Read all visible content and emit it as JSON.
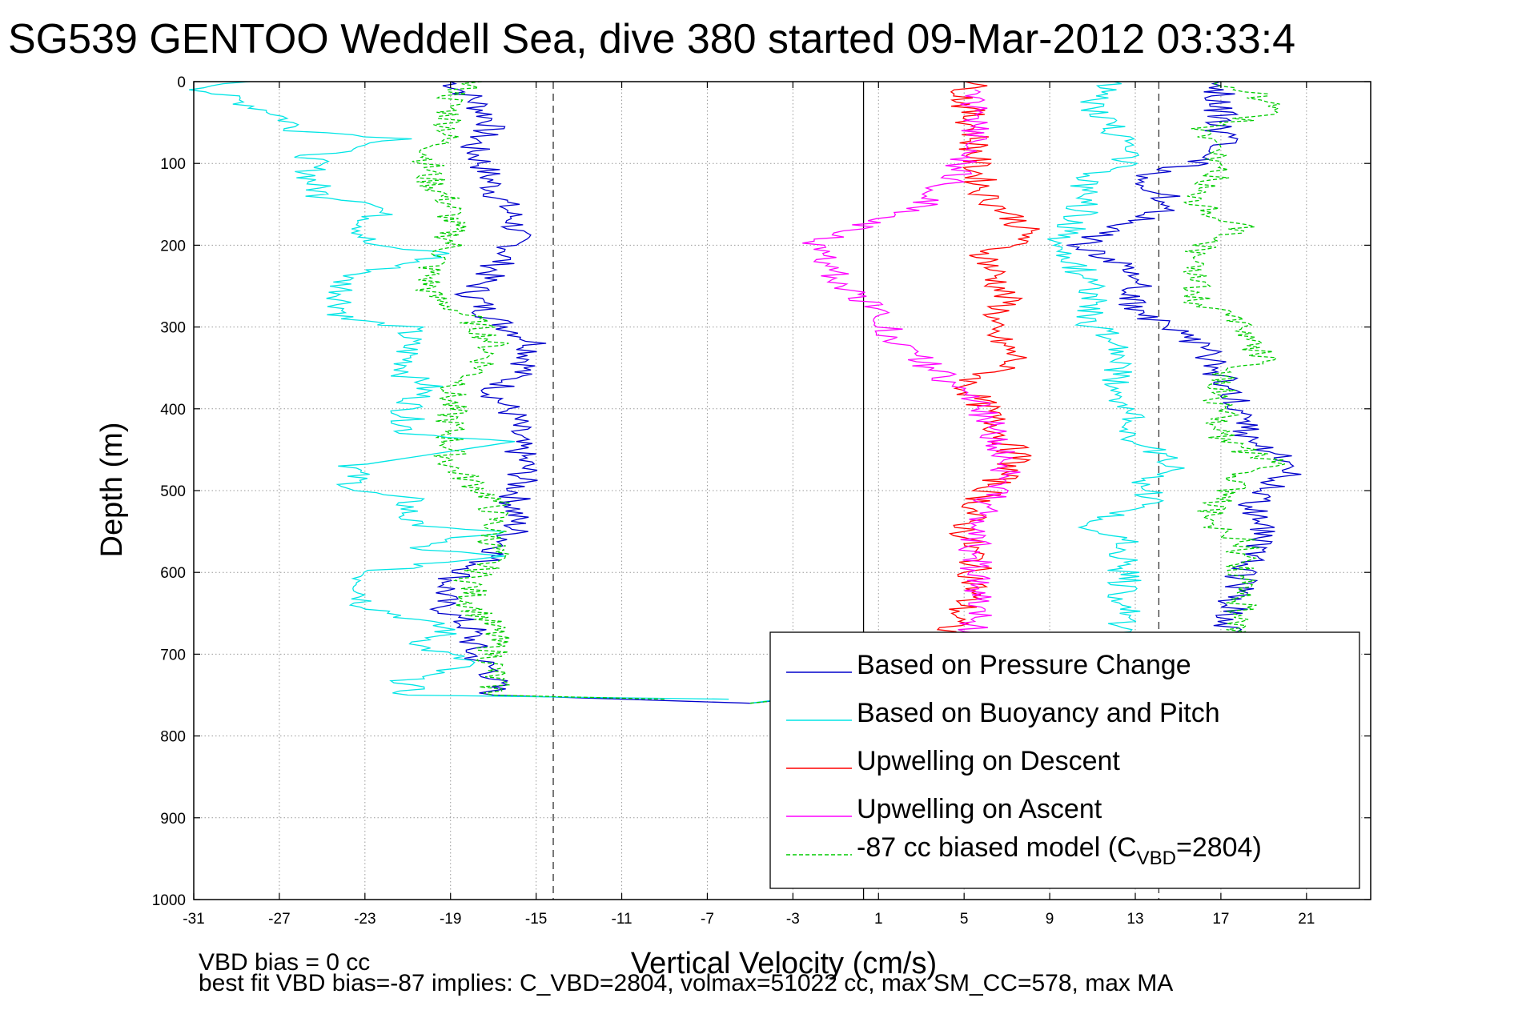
{
  "chart_data": {
    "type": "line",
    "title": "SG539 GENTOO Weddell Sea, dive 380 started 09-Mar-2012 03:33:4",
    "xlabel": "Vertical Velocity (cm/s)",
    "ylabel": "Depth (m)",
    "xlim": [
      -31,
      24
    ],
    "ylim": [
      0,
      1000
    ],
    "y_reversed": true,
    "xticks": [
      -31,
      -27,
      -23,
      -19,
      -15,
      -11,
      -7,
      -3,
      1,
      5,
      9,
      13,
      17,
      21
    ],
    "yticks": [
      0,
      100,
      200,
      300,
      400,
      500,
      600,
      700,
      800,
      900,
      1000
    ],
    "grid": true,
    "legend_position": "lower-right",
    "reference_lines": {
      "solid_x": 0.3,
      "dashed_x": [
        -14.2,
        14.1
      ]
    },
    "legend": [
      {
        "name": "Based on Pressure Change",
        "color": "#0000cc",
        "style": "solid"
      },
      {
        "name": "Based on Buoyancy and Pitch",
        "color": "#00e5e5",
        "style": "solid"
      },
      {
        "name": "Upwelling on Descent",
        "color": "#ff0000",
        "style": "solid"
      },
      {
        "name": "Upwelling on Ascent",
        "color": "#ff00ff",
        "style": "solid"
      },
      {
        "name": "-87 cc biased model (C",
        "name_sub": "VBD",
        "name_suffix": "=2804)",
        "color": "#00cc00",
        "style": "dashed"
      }
    ],
    "series": [
      {
        "key": "pressure_descent",
        "color": "#0000cc",
        "style": "solid",
        "depth": [
          0,
          20,
          50,
          80,
          100,
          130,
          170,
          200,
          230,
          260,
          290,
          320,
          350,
          380,
          410,
          440,
          470,
          510,
          550,
          580,
          610,
          640,
          670,
          700,
          720,
          750,
          760
        ],
        "velocity": [
          -19,
          -18,
          -17,
          -18,
          -17.5,
          -17,
          -16,
          -16,
          -17,
          -18,
          -17,
          -15,
          -15.5,
          -17,
          -16,
          -16,
          -15.5,
          -16,
          -16,
          -17,
          -19,
          -19.5,
          -18,
          -18,
          -17,
          -17,
          -5
        ]
      },
      {
        "key": "buoyancy_descent",
        "color": "#00e5e5",
        "style": "solid",
        "depth": [
          0,
          10,
          40,
          60,
          70,
          90,
          120,
          140,
          150,
          180,
          200,
          210,
          240,
          270,
          290,
          300,
          330,
          360,
          370,
          400,
          430,
          440,
          470,
          500,
          510,
          540,
          550,
          570,
          580,
          600,
          640,
          670,
          690,
          710,
          730,
          750,
          755
        ],
        "velocity": [
          -29,
          -30.5,
          -27,
          -26,
          -21,
          -25.5,
          -25.5,
          -25,
          -22,
          -23,
          -23,
          -19,
          -24,
          -24,
          -24,
          -21,
          -21,
          -21,
          -20,
          -21,
          -21,
          -16,
          -23.5,
          -23.5,
          -21,
          -21,
          -17,
          -21,
          -17,
          -23,
          -23,
          -19,
          -20.5,
          -18,
          -21,
          -21,
          -6
        ]
      },
      {
        "key": "model_descent",
        "color": "#00cc00",
        "style": "dashed",
        "depth": [
          0,
          20,
          60,
          90,
          120,
          150,
          200,
          230,
          260,
          290,
          320,
          350,
          380,
          410,
          440,
          470,
          510,
          550,
          580,
          610,
          640,
          670,
          700,
          730,
          750,
          755
        ],
        "velocity": [
          -18,
          -19,
          -19,
          -20,
          -20,
          -19,
          -19,
          -20,
          -20,
          -18,
          -17,
          -17.5,
          -19,
          -19,
          -19,
          -19,
          -17,
          -17,
          -17,
          -18,
          -18,
          -17,
          -17,
          -17,
          -17,
          -9
        ]
      },
      {
        "key": "pressure_ascent",
        "color": "#0000cc",
        "style": "solid",
        "depth": [
          760,
          700,
          650,
          600,
          560,
          520,
          480,
          470,
          440,
          400,
          360,
          320,
          300,
          280,
          250,
          220,
          200,
          180,
          150,
          120,
          90,
          60,
          30,
          10,
          0
        ],
        "velocity": [
          -5,
          17,
          17.5,
          18,
          19,
          18.5,
          20,
          21,
          18,
          18,
          17,
          16,
          14.5,
          13,
          13,
          12,
          10.5,
          12,
          15,
          13,
          17,
          17,
          17,
          17,
          17
        ]
      },
      {
        "key": "buoyancy_ascent",
        "color": "#00e5e5",
        "style": "solid",
        "depth": [
          760,
          700,
          650,
          600,
          560,
          540,
          520,
          490,
          470,
          440,
          400,
          360,
          320,
          300,
          280,
          250,
          200,
          160,
          120,
          100,
          70,
          30,
          0
        ],
        "velocity": [
          -5,
          12.5,
          12.5,
          12.5,
          12.5,
          10.5,
          13.5,
          13.5,
          15,
          13,
          12.5,
          12,
          12.5,
          11,
          11,
          11,
          9.5,
          10.5,
          10.5,
          12.5,
          12.5,
          11,
          12
        ]
      },
      {
        "key": "model_ascent",
        "color": "#00cc00",
        "style": "dashed",
        "depth": [
          760,
          700,
          650,
          600,
          560,
          540,
          480,
          470,
          440,
          400,
          360,
          340,
          300,
          270,
          240,
          200,
          180,
          150,
          100,
          60,
          40,
          30,
          0
        ],
        "velocity": [
          -5,
          18,
          18,
          18,
          18,
          16,
          18,
          20,
          17,
          17,
          17,
          19,
          18,
          16,
          16,
          16,
          18,
          16,
          17,
          16,
          19,
          20,
          17
        ]
      },
      {
        "key": "upwelling_descent",
        "color": "#ff0000",
        "style": "solid",
        "depth": [
          0,
          20,
          60,
          100,
          140,
          170,
          190,
          210,
          240,
          270,
          300,
          340,
          370,
          400,
          440,
          460,
          490,
          520,
          550,
          580,
          620,
          660,
          680
        ],
        "velocity": [
          5.5,
          5,
          5.5,
          5.5,
          6,
          7.5,
          8,
          6,
          6.5,
          7,
          6,
          7.5,
          5,
          6,
          7,
          7.5,
          6.5,
          5.5,
          5,
          5.5,
          5.5,
          4.5,
          4
        ]
      },
      {
        "key": "upwelling_ascent",
        "color": "#ff00ff",
        "style": "solid",
        "depth": [
          680,
          640,
          600,
          560,
          520,
          500,
          470,
          440,
          410,
          380,
          350,
          320,
          290,
          260,
          240,
          220,
          200,
          185,
          170,
          150,
          120,
          90,
          60,
          30,
          10
        ],
        "velocity": [
          5.5,
          5.5,
          5.5,
          5.5,
          6,
          6.5,
          7,
          6.5,
          6,
          5,
          3.5,
          2,
          1,
          0,
          -1,
          -1.5,
          -2,
          -1,
          1,
          3,
          4.5,
          5,
          5.5,
          5.5,
          5.5
        ]
      }
    ],
    "footer": [
      "VBD bias = 0 cc",
      "best fit VBD bias=-87 implies: C_VBD=2804, volmax=51022 cc, max SM_CC=578, max MA"
    ]
  }
}
